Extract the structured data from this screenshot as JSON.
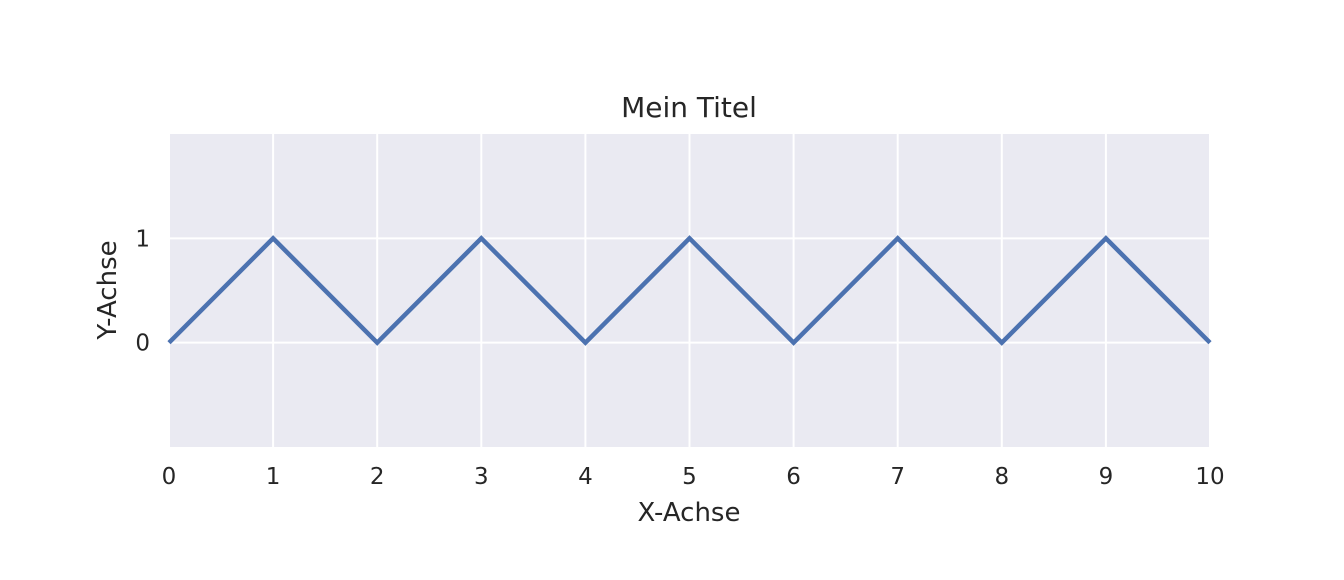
{
  "chart_data": {
    "type": "line",
    "title": "Mein Titel",
    "xlabel": "X-Achse",
    "ylabel": "Y-Achse",
    "xlim": [
      0,
      10
    ],
    "ylim": [
      -1,
      2
    ],
    "x_ticks": [
      0,
      1,
      2,
      3,
      4,
      5,
      6,
      7,
      8,
      9,
      10
    ],
    "y_ticks": [
      0,
      1
    ],
    "x_tick_labels": [
      "0",
      "1",
      "2",
      "3",
      "4",
      "5",
      "6",
      "7",
      "8",
      "9",
      "10"
    ],
    "y_tick_labels": [
      "0",
      "1"
    ],
    "grid": true,
    "colors": {
      "plot_background": "#eaeaf2",
      "grid": "#ffffff",
      "line": "#4c72b0",
      "text": "#262626"
    },
    "series": [
      {
        "x": [
          0,
          1,
          2,
          3,
          4,
          5,
          6,
          7,
          8,
          9,
          10
        ],
        "values": [
          0,
          1,
          0,
          1,
          0,
          1,
          0,
          1,
          0,
          1,
          0
        ]
      }
    ]
  }
}
